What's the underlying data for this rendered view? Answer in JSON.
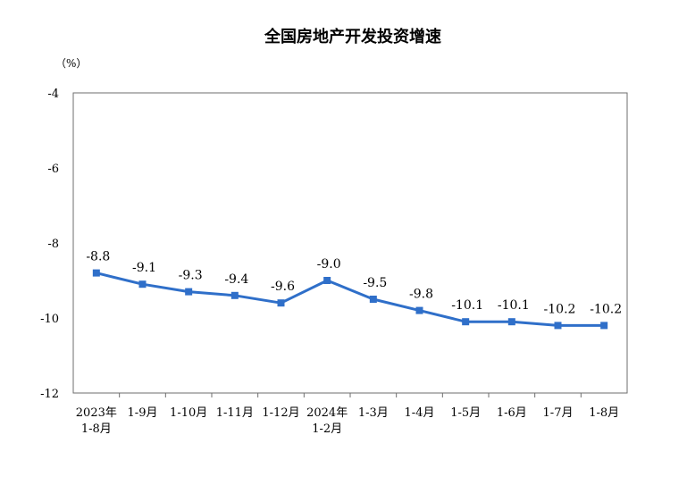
{
  "chart_data": {
    "type": "line",
    "title": "全国房地产开发投资增速",
    "ylabel": "（%）",
    "xlabel": "",
    "ylim": [
      -12,
      -4
    ],
    "yticks": [
      -4,
      -6,
      -8,
      -10,
      -12
    ],
    "categories": [
      [
        "2023年",
        "1-8月"
      ],
      [
        "1-9月"
      ],
      [
        "1-10月"
      ],
      [
        "1-11月"
      ],
      [
        "1-12月"
      ],
      [
        "2024年",
        "1-2月"
      ],
      [
        "1-3月"
      ],
      [
        "1-4月"
      ],
      [
        "1-5月"
      ],
      [
        "1-6月"
      ],
      [
        "1-7月"
      ],
      [
        "1-8月"
      ]
    ],
    "values": [
      -8.8,
      -9.1,
      -9.3,
      -9.4,
      -9.6,
      -9.0,
      -9.5,
      -9.8,
      -10.1,
      -10.1,
      -10.2,
      -10.2
    ],
    "data_labels": [
      "-8.8",
      "-9.1",
      "-9.3",
      "-9.4",
      "-9.6",
      "-9.0",
      "-9.5",
      "-9.8",
      "-10.1",
      "-10.1",
      "-10.2",
      "-10.2"
    ],
    "grid": false,
    "legend": "none",
    "line_color": "#2f6fc9"
  }
}
